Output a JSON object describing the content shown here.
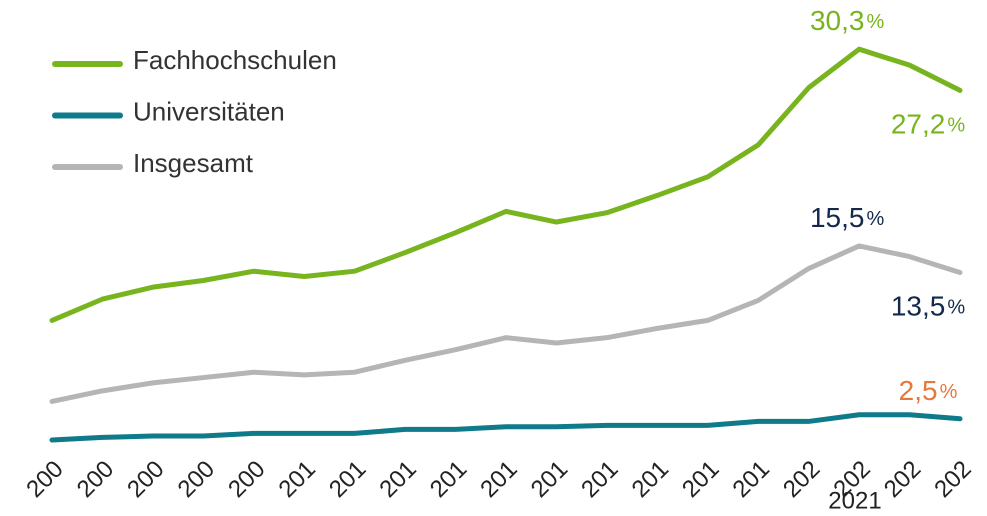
{
  "chart_data": {
    "type": "line",
    "categories": [
      "200",
      "200",
      "200",
      "200",
      "200",
      "201",
      "201",
      "201",
      "201",
      "201",
      "201",
      "201",
      "201",
      "201",
      "201",
      "202",
      "202",
      "202",
      "202"
    ],
    "annotation": "2021",
    "unit": "%",
    "ylim": [
      0,
      34
    ],
    "series": [
      {
        "name": "Fachhochschulen",
        "color": "#78b41e",
        "label_color": "#78b41e",
        "values": [
          9.9,
          11.5,
          12.4,
          12.9,
          13.6,
          13.2,
          13.6,
          15.0,
          16.5,
          18.1,
          17.3,
          18.0,
          19.3,
          20.7,
          23.1,
          27.4,
          30.3,
          29.1,
          27.2
        ],
        "value_labels": [
          null,
          null,
          null,
          null,
          null,
          null,
          null,
          null,
          null,
          null,
          null,
          null,
          null,
          null,
          null,
          null,
          "30,3",
          null,
          "27,2"
        ]
      },
      {
        "name": "Universitäten",
        "color": "#0e7a8a",
        "label_color": "#e8773a",
        "values": [
          0.9,
          1.1,
          1.2,
          1.2,
          1.4,
          1.4,
          1.4,
          1.7,
          1.7,
          1.9,
          1.9,
          2.0,
          2.0,
          2.0,
          2.3,
          2.3,
          2.8,
          2.8,
          2.5
        ],
        "value_labels": [
          null,
          null,
          null,
          null,
          null,
          null,
          null,
          null,
          null,
          null,
          null,
          null,
          null,
          null,
          null,
          null,
          null,
          null,
          "2,5"
        ]
      },
      {
        "name": "Insgesamt",
        "color": "#b5b5b5",
        "label_color": "#14284b",
        "values": [
          3.8,
          4.6,
          5.2,
          5.6,
          6.0,
          5.8,
          6.0,
          6.9,
          7.7,
          8.6,
          8.2,
          8.6,
          9.3,
          9.9,
          11.4,
          13.8,
          15.5,
          14.7,
          13.5
        ],
        "value_labels": [
          null,
          null,
          null,
          null,
          null,
          null,
          null,
          null,
          null,
          null,
          null,
          null,
          null,
          null,
          null,
          null,
          "15,5",
          null,
          "13,5"
        ]
      }
    ]
  }
}
